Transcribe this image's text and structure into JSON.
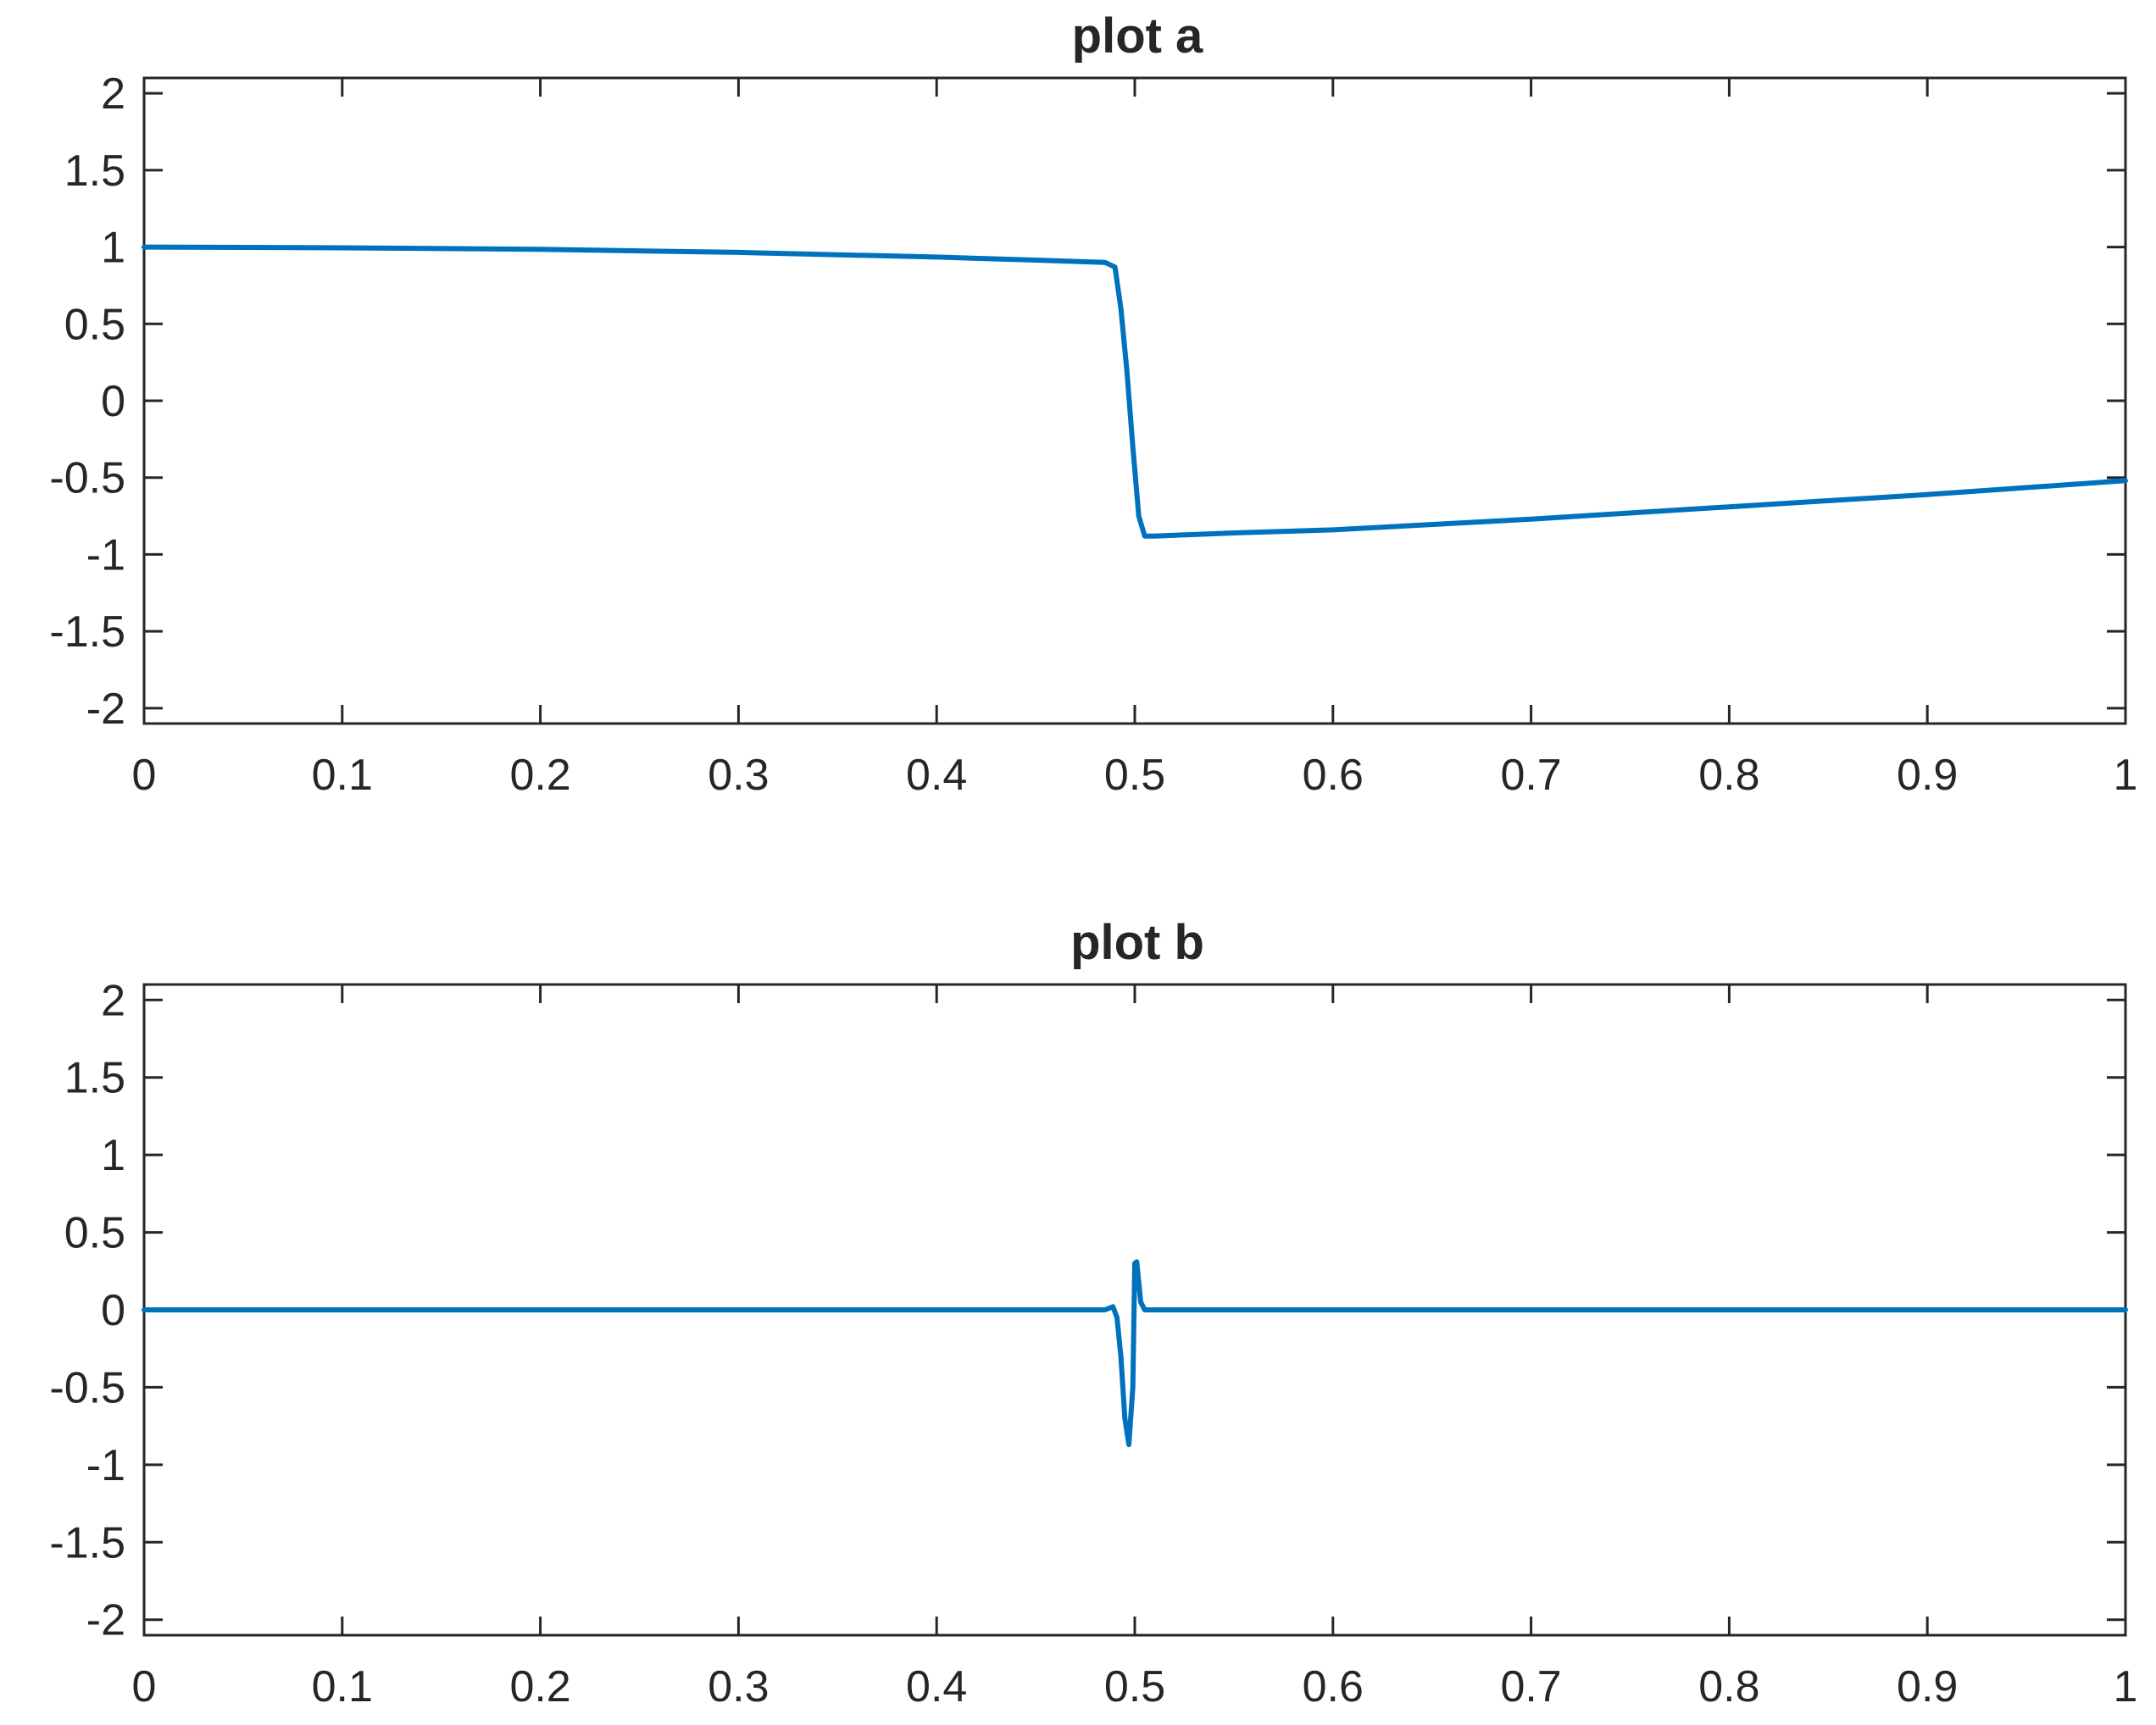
{
  "colors": {
    "series": "#0072BD",
    "axes": "#262626",
    "background": "#ffffff"
  },
  "chart_data": [
    {
      "type": "line",
      "title": "plot a",
      "xlabel": "",
      "ylabel": "",
      "xlim": [
        0,
        1
      ],
      "ylim": [
        -2.1,
        2.1
      ],
      "grid": false,
      "x_ticks": [
        0,
        0.1,
        0.2,
        0.3,
        0.4,
        0.5,
        0.6,
        0.7,
        0.8,
        0.9,
        1
      ],
      "x_tick_labels": [
        "0",
        "0.1",
        "0.2",
        "0.3",
        "0.4",
        "0.5",
        "0.6",
        "0.7",
        "0.8",
        "0.9",
        "1"
      ],
      "y_ticks": [
        2,
        1.5,
        1,
        0.5,
        0,
        -0.5,
        -1,
        -1.5,
        -2
      ],
      "y_tick_labels": [
        "2",
        "1.5",
        "1",
        "0.5",
        "0",
        "-0.5",
        "-1",
        "-1.5",
        "-2"
      ],
      "series": [
        {
          "x": [
            0,
            0.1,
            0.2,
            0.3,
            0.4,
            0.45,
            0.485,
            0.49,
            0.493,
            0.496,
            0.499,
            0.502,
            0.505,
            0.51,
            0.55,
            0.6,
            0.7,
            0.8,
            0.9,
            1.0
          ],
          "y": [
            1.0,
            0.995,
            0.985,
            0.965,
            0.935,
            0.915,
            0.9,
            0.87,
            0.6,
            0.2,
            -0.3,
            -0.75,
            -0.88,
            -0.88,
            -0.86,
            -0.84,
            -0.77,
            -0.69,
            -0.61,
            -0.52
          ]
        }
      ]
    },
    {
      "type": "line",
      "title": "plot b",
      "xlabel": "",
      "ylabel": "",
      "xlim": [
        0,
        1
      ],
      "ylim": [
        -2.1,
        2.1
      ],
      "grid": false,
      "x_ticks": [
        0,
        0.1,
        0.2,
        0.3,
        0.4,
        0.5,
        0.6,
        0.7,
        0.8,
        0.9,
        1
      ],
      "x_tick_labels": [
        "0",
        "0.1",
        "0.2",
        "0.3",
        "0.4",
        "0.5",
        "0.6",
        "0.7",
        "0.8",
        "0.9",
        "1"
      ],
      "y_ticks": [
        2,
        1.5,
        1,
        0.5,
        0,
        -0.5,
        -1,
        -1.5,
        -2
      ],
      "y_tick_labels": [
        "2",
        "1.5",
        "1",
        "0.5",
        "0",
        "-0.5",
        "-1",
        "-1.5",
        "-2"
      ],
      "series": [
        {
          "x": [
            0,
            0.485,
            0.489,
            0.491,
            0.493,
            0.495,
            0.497,
            0.499,
            0.5,
            0.501,
            0.503,
            0.505,
            0.51,
            1.0
          ],
          "y": [
            0,
            0,
            0.02,
            -0.05,
            -0.3,
            -0.7,
            -0.87,
            -0.5,
            0.3,
            0.31,
            0.05,
            0,
            0,
            0
          ]
        }
      ]
    }
  ]
}
